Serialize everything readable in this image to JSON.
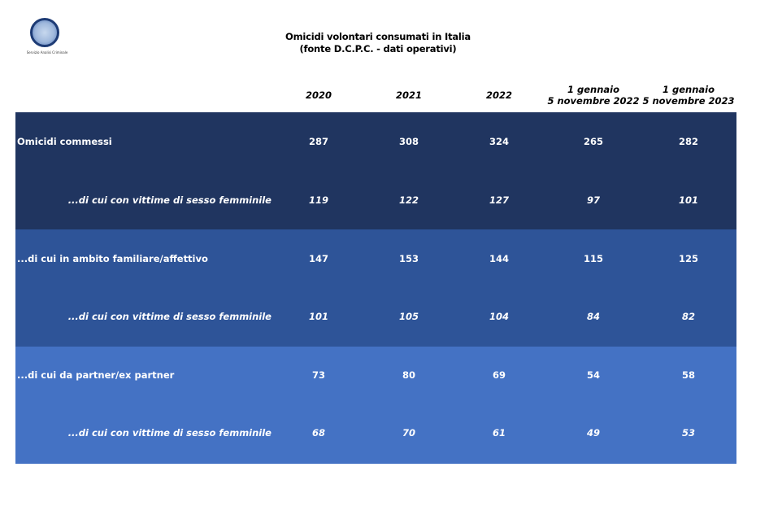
{
  "logo": {
    "caption": "Servizio Analisi Criminale",
    "icon": "police-emblem-icon"
  },
  "title": {
    "line1": "Omicidi volontari consumati in Italia",
    "line2": "(fonte D.C.P.C. - dati operativi)"
  },
  "columns": [
    {
      "line1": "2020",
      "line2": ""
    },
    {
      "line1": "2021",
      "line2": ""
    },
    {
      "line1": "2022",
      "line2": ""
    },
    {
      "line1": "1 gennaio",
      "line2": "5 novembre 2022"
    },
    {
      "line1": "1 gennaio",
      "line2": "5 novembre 2023"
    }
  ],
  "rows": [
    {
      "label": "Omicidi commessi",
      "values": [
        "287",
        "308",
        "324",
        "265",
        "282"
      ]
    },
    {
      "label": "...di cui con vittime di sesso femminile",
      "values": [
        "119",
        "122",
        "127",
        "97",
        "101"
      ]
    },
    {
      "label": "...di cui in ambito familiare/affettivo",
      "values": [
        "147",
        "153",
        "144",
        "115",
        "125"
      ]
    },
    {
      "label": "...di cui con vittime di sesso femminile",
      "values": [
        "101",
        "105",
        "104",
        "84",
        "82"
      ]
    },
    {
      "label": "...di cui da partner/ex partner",
      "values": [
        "73",
        "80",
        "69",
        "54",
        "58"
      ]
    },
    {
      "label": "...di cui con vittime di sesso femminile",
      "values": [
        "68",
        "70",
        "61",
        "49",
        "53"
      ]
    }
  ],
  "colors": {
    "band_1": "#203560",
    "band_2": "#2e5498",
    "band_3": "#4472c4",
    "text_on_band": "#ffffff"
  }
}
